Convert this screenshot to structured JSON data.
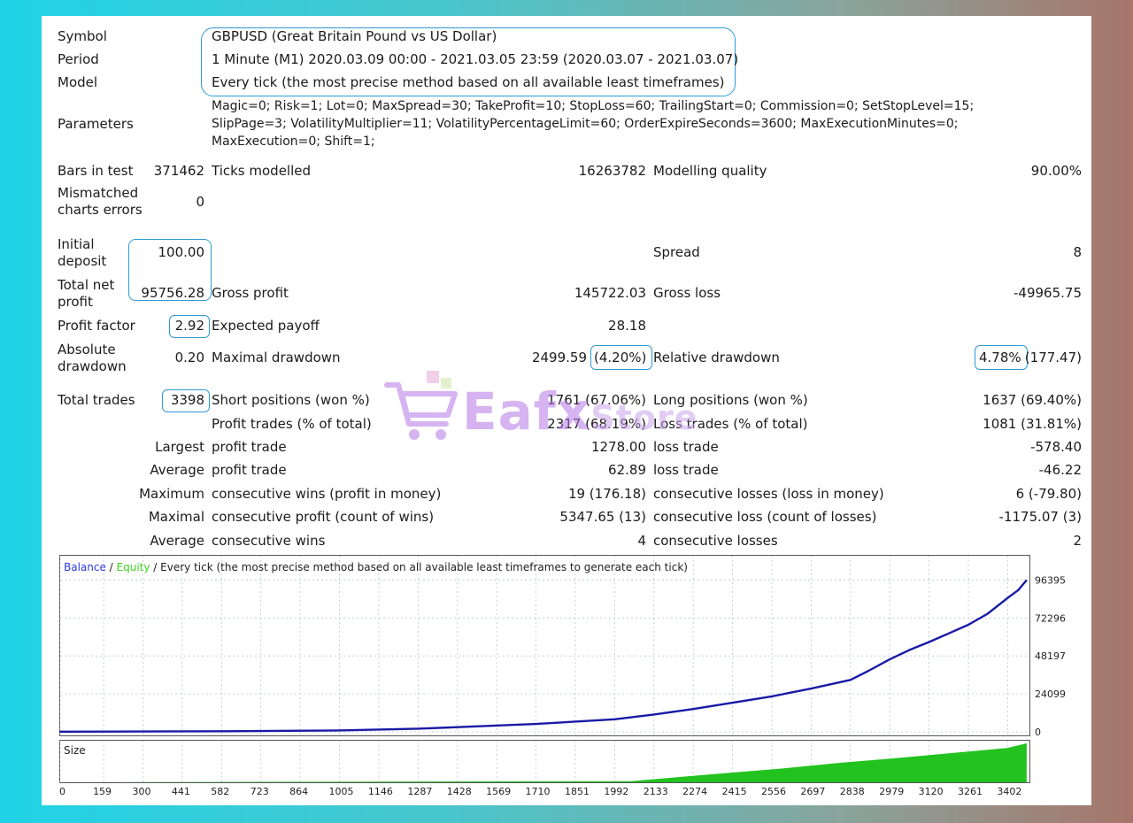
{
  "header": {
    "symbol_label": "Symbol",
    "symbol_value": "GBPUSD (Great Britain Pound vs US Dollar)",
    "period_label": "Period",
    "period_value": "1 Minute (M1) 2020.03.09 00:00 - 2021.03.05 23:59 (2020.03.07 - 2021.03.07)",
    "model_label": "Model",
    "model_value": "Every tick (the most precise method based on all available least timeframes)",
    "parameters_label": "Parameters",
    "parameters_lines": [
      "Magic=0; Risk=1; Lot=0; MaxSpread=30; TakeProfit=10; StopLoss=60; TrailingStart=0; Commission=0; SetStopLevel=15;",
      "SlipPage=3; VolatilityMultiplier=11; VolatilityPercentageLimit=60; OrderExpireSeconds=3600; MaxExecutionMinutes=0;",
      "MaxExecution=0; Shift=1;"
    ]
  },
  "stats": {
    "bars_label": "Bars in test",
    "bars_value": "371462",
    "ticks_label": "Ticks modelled",
    "ticks_value": "16263782",
    "quality_label": "Modelling quality",
    "quality_value": "90.00%",
    "mismatch_label_1": "Mismatched",
    "mismatch_label_2": "charts errors",
    "mismatch_value": "0",
    "deposit_label_1": "Initial",
    "deposit_label_2": "deposit",
    "deposit_value": "100.00",
    "spread_label": "Spread",
    "spread_value": "8",
    "netprofit_label_1": "Total net",
    "netprofit_label_2": "profit",
    "netprofit_value": "95756.28",
    "grossprofit_label": "Gross profit",
    "grossprofit_value": "145722.03",
    "grossloss_label": "Gross loss",
    "grossloss_value": "-49965.75",
    "pf_label": "Profit factor",
    "pf_value": "2.92",
    "payoff_label": "Expected payoff",
    "payoff_value": "28.18",
    "absdd_label_1": "Absolute",
    "absdd_label_2": "drawdown",
    "absdd_value": "0.20",
    "maxdd_label": "Maximal drawdown",
    "maxdd_value": "2499.59",
    "maxdd_pct": "(4.20%)",
    "reldd_label": "Relative drawdown",
    "reldd_pct": "4.78%",
    "reldd_value": "(177.47)",
    "trades_label": "Total trades",
    "trades_value": "3398",
    "short_label": "Short positions (won %)",
    "short_value": "1761 (67.06%)",
    "long_label": "Long positions (won %)",
    "long_value": "1637 (69.40%)",
    "profit_trades_label": "Profit trades (% of total)",
    "profit_trades_value": "2317 (68.19%)",
    "loss_trades_label": "Loss trades (% of total)",
    "loss_trades_value": "1081 (31.81%)",
    "rows": [
      {
        "prefix": "Largest",
        "p_label": "profit trade",
        "p_value": "1278.00",
        "l_label": "loss trade",
        "l_value": "-578.40"
      },
      {
        "prefix": "Average",
        "p_label": "profit trade",
        "p_value": "62.89",
        "l_label": "loss trade",
        "l_value": "-46.22"
      },
      {
        "prefix": "Maximum",
        "p_label": "consecutive wins (profit in money)",
        "p_value": "19 (176.18)",
        "l_label": "consecutive losses (loss in money)",
        "l_value": "6 (-79.80)"
      },
      {
        "prefix": "Maximal",
        "p_label": "consecutive profit (count of wins)",
        "p_value": "5347.65 (13)",
        "l_label": "consecutive loss (count of losses)",
        "l_value": "-1175.07 (3)"
      },
      {
        "prefix": "Average",
        "p_label": "consecutive wins",
        "p_value": "4",
        "l_label": "consecutive losses",
        "l_value": "2"
      }
    ]
  },
  "watermark": {
    "main": "Eafx",
    "suffix": "Store"
  },
  "chart": {
    "legend_balance": "Balance",
    "legend_sep1": " / ",
    "legend_equity": "Equity",
    "legend_rest": " / Every tick (the most precise method based on all available least timeframes to generate each tick)",
    "size_label": "Size",
    "line_color": "#1a1aa6",
    "size_color": "#22c21f"
  },
  "chart_data": {
    "type": "line",
    "y_ticks": [
      "96395",
      "72296",
      "48197",
      "24099",
      "0"
    ],
    "y_tick_values": [
      96395,
      72296,
      48197,
      24099,
      0
    ],
    "x_ticks": [
      "0",
      "159",
      "300",
      "441",
      "582",
      "723",
      "864",
      "1005",
      "1146",
      "1287",
      "1428",
      "1569",
      "1710",
      "1851",
      "1992",
      "2133",
      "2274",
      "2415",
      "2556",
      "2697",
      "2838",
      "2979",
      "3120",
      "3261",
      "3402"
    ],
    "xlim": [
      0,
      3480
    ],
    "ylim": [
      0,
      100000
    ],
    "series": [
      {
        "name": "Balance",
        "x": [
          0,
          300,
          600,
          1000,
          1287,
          1428,
          1710,
          1992,
          2133,
          2274,
          2415,
          2556,
          2697,
          2838,
          2900,
          2979,
          3050,
          3120,
          3190,
          3261,
          3330,
          3402,
          3440,
          3470
        ],
        "y": [
          100,
          200,
          400,
          900,
          2000,
          3000,
          5000,
          8000,
          11000,
          14500,
          18500,
          22500,
          27500,
          33000,
          38500,
          46000,
          52000,
          57000,
          62500,
          68000,
          75000,
          85000,
          90000,
          96395
        ]
      }
    ],
    "size_series": {
      "x": [
        0,
        2050,
        2200,
        2400,
        2600,
        2800,
        3000,
        3200,
        3400,
        3470
      ],
      "y": [
        0,
        0.03,
        0.12,
        0.24,
        0.36,
        0.5,
        0.62,
        0.75,
        0.88,
        1.0
      ]
    }
  }
}
